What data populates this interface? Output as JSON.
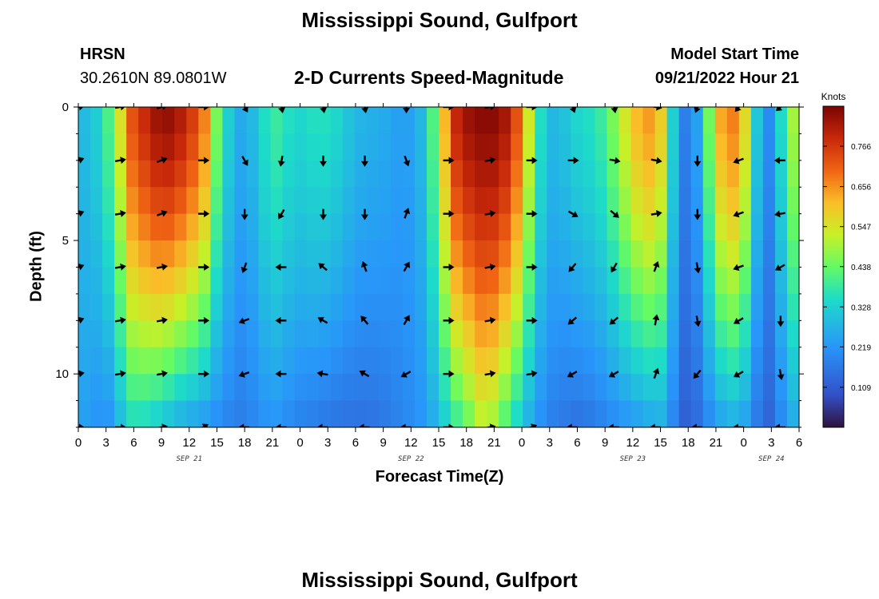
{
  "page": {
    "title": "Mississippi Sound, Gulfport",
    "station_id": "HRSN",
    "station_coords": "30.2610N  89.0801W",
    "subtitle": "2-D Currents Speed-Magnitude",
    "model_start_label": "Model Start Time",
    "model_start_value": "09/21/2022 Hour 21",
    "footer_title": "Mississippi Sound, Gulfport"
  },
  "chart_data": {
    "type": "heatmap",
    "xlabel": "Forecast Time(Z)",
    "ylabel": "Depth (ft)",
    "x_range_hours": [
      0,
      78
    ],
    "y_range_ft": [
      0,
      12
    ],
    "y_inverted": true,
    "x_tick_labels": [
      "0",
      "3",
      "6",
      "9",
      "12",
      "15",
      "18",
      "21",
      "0",
      "3",
      "6",
      "9",
      "12",
      "15",
      "18",
      "21",
      "0",
      "3",
      "6",
      "9",
      "12",
      "15",
      "18",
      "21",
      "0",
      "3",
      "6"
    ],
    "y_ticks": [
      0,
      5,
      10
    ],
    "date_labels": [
      {
        "label": "SEP 21",
        "hour": 12
      },
      {
        "label": "SEP 22",
        "hour": 36
      },
      {
        "label": "SEP 23",
        "hour": 60
      },
      {
        "label": "SEP 24",
        "hour": 75
      }
    ],
    "colorbar": {
      "unit": "Knots",
      "tick_values": [
        "0.766",
        "0.656",
        "0.547",
        "0.438",
        "0.328",
        "0.219",
        "0.109"
      ],
      "min": 0.0,
      "max": 0.875
    },
    "speed_profile": [
      {
        "hour": 0,
        "surface": 0.28,
        "bottom": 0.25
      },
      {
        "hour": 1.5,
        "surface": 0.3,
        "bottom": 0.22
      },
      {
        "hour": 3,
        "surface": 0.38,
        "bottom": 0.2
      },
      {
        "hour": 4.5,
        "surface": 0.55,
        "bottom": 0.28
      },
      {
        "hour": 6,
        "surface": 0.75,
        "bottom": 0.35
      },
      {
        "hour": 7.5,
        "surface": 0.8,
        "bottom": 0.33
      },
      {
        "hour": 9,
        "surface": 0.86,
        "bottom": 0.3
      },
      {
        "hour": 10.5,
        "surface": 0.84,
        "bottom": 0.26
      },
      {
        "hour": 12,
        "surface": 0.78,
        "bottom": 0.24
      },
      {
        "hour": 13.5,
        "surface": 0.7,
        "bottom": 0.22
      },
      {
        "hour": 15,
        "surface": 0.45,
        "bottom": 0.2
      },
      {
        "hour": 16.5,
        "surface": 0.3,
        "bottom": 0.18
      },
      {
        "hour": 18,
        "surface": 0.24,
        "bottom": 0.17
      },
      {
        "hour": 19.5,
        "surface": 0.32,
        "bottom": 0.2
      },
      {
        "hour": 21,
        "surface": 0.4,
        "bottom": 0.22
      },
      {
        "hour": 22.5,
        "surface": 0.36,
        "bottom": 0.2
      },
      {
        "hour": 24,
        "surface": 0.34,
        "bottom": 0.18
      },
      {
        "hour": 25.5,
        "surface": 0.36,
        "bottom": 0.17
      },
      {
        "hour": 27,
        "surface": 0.36,
        "bottom": 0.16
      },
      {
        "hour": 28.5,
        "surface": 0.33,
        "bottom": 0.15
      },
      {
        "hour": 30,
        "surface": 0.28,
        "bottom": 0.15
      },
      {
        "hour": 31.5,
        "surface": 0.27,
        "bottom": 0.15
      },
      {
        "hour": 33,
        "surface": 0.26,
        "bottom": 0.16
      },
      {
        "hour": 34.5,
        "surface": 0.24,
        "bottom": 0.18
      },
      {
        "hour": 36,
        "surface": 0.24,
        "bottom": 0.2
      },
      {
        "hour": 37.5,
        "surface": 0.3,
        "bottom": 0.22
      },
      {
        "hour": 39,
        "surface": 0.5,
        "bottom": 0.28
      },
      {
        "hour": 40.5,
        "surface": 0.78,
        "bottom": 0.36
      },
      {
        "hour": 42,
        "surface": 0.84,
        "bottom": 0.42
      },
      {
        "hour": 43.5,
        "surface": 0.86,
        "bottom": 0.5
      },
      {
        "hour": 45,
        "surface": 0.86,
        "bottom": 0.48
      },
      {
        "hour": 46.5,
        "surface": 0.82,
        "bottom": 0.38
      },
      {
        "hour": 48,
        "surface": 0.68,
        "bottom": 0.3
      },
      {
        "hour": 49.5,
        "surface": 0.4,
        "bottom": 0.22
      },
      {
        "hour": 51,
        "surface": 0.28,
        "bottom": 0.18
      },
      {
        "hour": 52.5,
        "surface": 0.3,
        "bottom": 0.16
      },
      {
        "hour": 54,
        "surface": 0.34,
        "bottom": 0.15
      },
      {
        "hour": 55.5,
        "surface": 0.36,
        "bottom": 0.16
      },
      {
        "hour": 57,
        "surface": 0.4,
        "bottom": 0.18
      },
      {
        "hour": 58.5,
        "surface": 0.5,
        "bottom": 0.2
      },
      {
        "hour": 60,
        "surface": 0.6,
        "bottom": 0.22
      },
      {
        "hour": 61.5,
        "surface": 0.66,
        "bottom": 0.24
      },
      {
        "hour": 63,
        "surface": 0.6,
        "bottom": 0.26
      },
      {
        "hour": 64.5,
        "surface": 0.3,
        "bottom": 0.18
      },
      {
        "hour": 66,
        "surface": 0.14,
        "bottom": 0.1
      },
      {
        "hour": 67.5,
        "surface": 0.3,
        "bottom": 0.16
      },
      {
        "hour": 69,
        "surface": 0.6,
        "bottom": 0.22
      },
      {
        "hour": 70.5,
        "surface": 0.7,
        "bottom": 0.26
      },
      {
        "hour": 72,
        "surface": 0.6,
        "bottom": 0.24
      },
      {
        "hour": 73.5,
        "surface": 0.3,
        "bottom": 0.16
      },
      {
        "hour": 75,
        "surface": 0.18,
        "bottom": 0.12
      },
      {
        "hour": 76.5,
        "surface": 0.42,
        "bottom": 0.22
      },
      {
        "hour": 78,
        "surface": 0.55,
        "bottom": 0.28
      }
    ],
    "vector_depths_ft": [
      0,
      2,
      4,
      6,
      8,
      10,
      12
    ],
    "vector_directions_deg": [
      {
        "hour": 0,
        "dirs": [
          80,
          70,
          70,
          70,
          70,
          80,
          90
        ]
      },
      {
        "hour": 4.5,
        "dirs": [
          80,
          80,
          80,
          80,
          80,
          80,
          90
        ]
      },
      {
        "hour": 9,
        "dirs": [
          70,
          70,
          70,
          80,
          80,
          80,
          80
        ]
      },
      {
        "hour": 13.5,
        "dirs": [
          90,
          90,
          90,
          90,
          90,
          90,
          60
        ]
      },
      {
        "hour": 18,
        "dirs": [
          150,
          150,
          180,
          200,
          250,
          250,
          270
        ]
      },
      {
        "hour": 22,
        "dirs": [
          170,
          190,
          210,
          270,
          270,
          270,
          270
        ]
      },
      {
        "hour": 26.5,
        "dirs": [
          170,
          180,
          180,
          310,
          300,
          280,
          270
        ]
      },
      {
        "hour": 31,
        "dirs": [
          170,
          180,
          180,
          340,
          320,
          300,
          270
        ]
      },
      {
        "hour": 35.5,
        "dirs": [
          180,
          160,
          20,
          30,
          30,
          240,
          270
        ]
      },
      {
        "hour": 40,
        "dirs": [
          90,
          90,
          90,
          90,
          90,
          90,
          90
        ]
      },
      {
        "hour": 44.5,
        "dirs": [
          80,
          80,
          80,
          80,
          80,
          80,
          80
        ]
      },
      {
        "hour": 49,
        "dirs": [
          90,
          90,
          90,
          90,
          90,
          80,
          70
        ]
      },
      {
        "hour": 53.5,
        "dirs": [
          160,
          90,
          120,
          220,
          230,
          240,
          270
        ]
      },
      {
        "hour": 58,
        "dirs": [
          170,
          100,
          130,
          210,
          230,
          240,
          270
        ]
      },
      {
        "hour": 62.5,
        "dirs": [
          100,
          100,
          80,
          20,
          10,
          20,
          270
        ]
      },
      {
        "hour": 67,
        "dirs": [
          200,
          180,
          180,
          170,
          170,
          220,
          270
        ]
      },
      {
        "hour": 71.5,
        "dirs": [
          220,
          250,
          250,
          250,
          240,
          240,
          270
        ]
      },
      {
        "hour": 76,
        "dirs": [
          230,
          270,
          260,
          240,
          180,
          170,
          270
        ]
      }
    ]
  }
}
